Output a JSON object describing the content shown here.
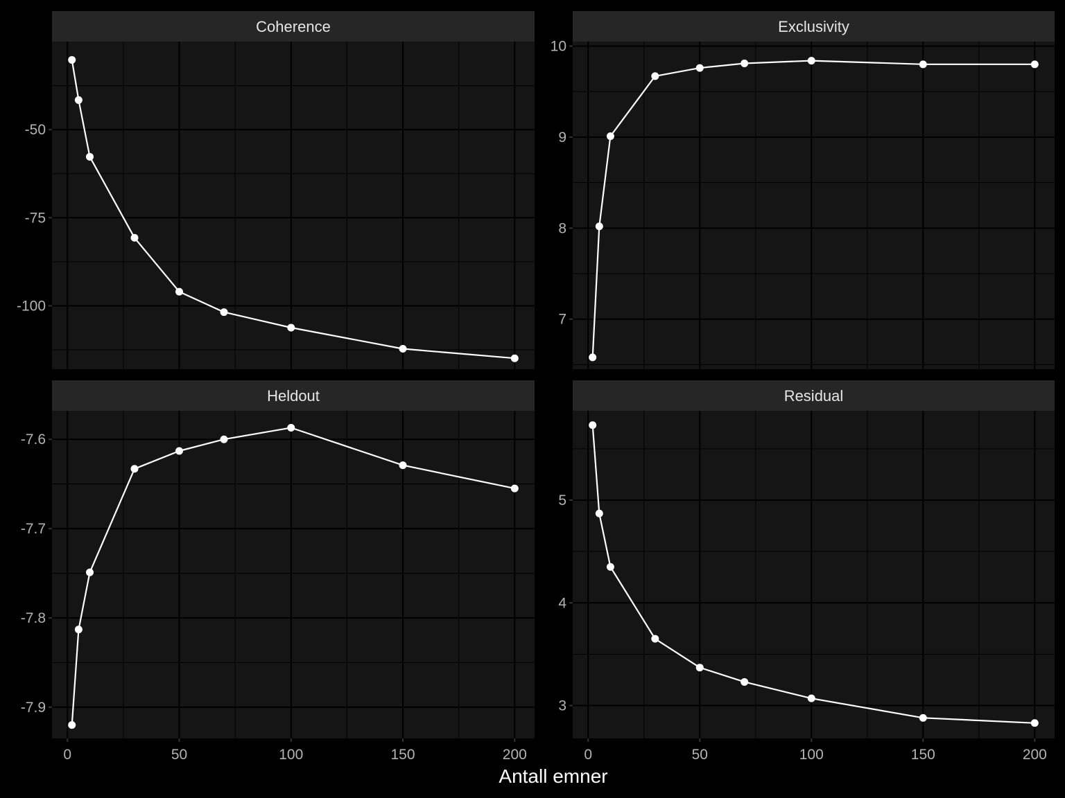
{
  "chart_data": {
    "type": "line",
    "xlabel": "Antall emner",
    "ylabel": "",
    "x_ticks": [
      0,
      50,
      100,
      150,
      200
    ],
    "grid": true,
    "theme": {
      "background": "#000000",
      "panel_background": "#151515",
      "strip_background": "#262626",
      "line_color": "#ffffff",
      "point_color": "#ffffff"
    },
    "panels": [
      {
        "title": "Coherence",
        "xlim": [
          -6.9,
          208.9
        ],
        "ylim": [
          -118,
          -25
        ],
        "y_ticks": [
          -50,
          -75,
          -100
        ],
        "x": [
          2,
          5,
          10,
          30,
          50,
          70,
          100,
          150,
          200
        ],
        "values": [
          -30.2,
          -41.6,
          -57.7,
          -80.7,
          -96.0,
          -101.8,
          -106.2,
          -112.2,
          -114.9
        ]
      },
      {
        "title": "Exclusivity",
        "xlim": [
          -6.9,
          208.9
        ],
        "ylim": [
          6.45,
          10.05
        ],
        "y_ticks": [
          10,
          9,
          8,
          7
        ],
        "x": [
          2,
          5,
          10,
          30,
          50,
          70,
          100,
          150,
          200
        ],
        "values": [
          6.58,
          8.02,
          9.01,
          9.67,
          9.76,
          9.81,
          9.84,
          9.8,
          9.8
        ]
      },
      {
        "title": "Heldout",
        "xlim": [
          -6.9,
          208.9
        ],
        "ylim": [
          -7.935,
          -7.568
        ],
        "y_ticks": [
          -7.6,
          -7.7,
          -7.8,
          -7.9
        ],
        "x": [
          2,
          5,
          10,
          30,
          50,
          70,
          100,
          150,
          200
        ],
        "values": [
          -7.92,
          -7.813,
          -7.749,
          -7.633,
          -7.613,
          -7.6,
          -7.587,
          -7.629,
          -7.655
        ]
      },
      {
        "title": "Residual",
        "xlim": [
          -6.9,
          208.9
        ],
        "ylim": [
          2.68,
          5.87
        ],
        "y_ticks": [
          5,
          4,
          3
        ],
        "x": [
          2,
          5,
          10,
          30,
          50,
          70,
          100,
          150,
          200
        ],
        "values": [
          5.73,
          4.87,
          4.35,
          3.65,
          3.37,
          3.23,
          3.07,
          2.88,
          2.83
        ]
      }
    ]
  }
}
